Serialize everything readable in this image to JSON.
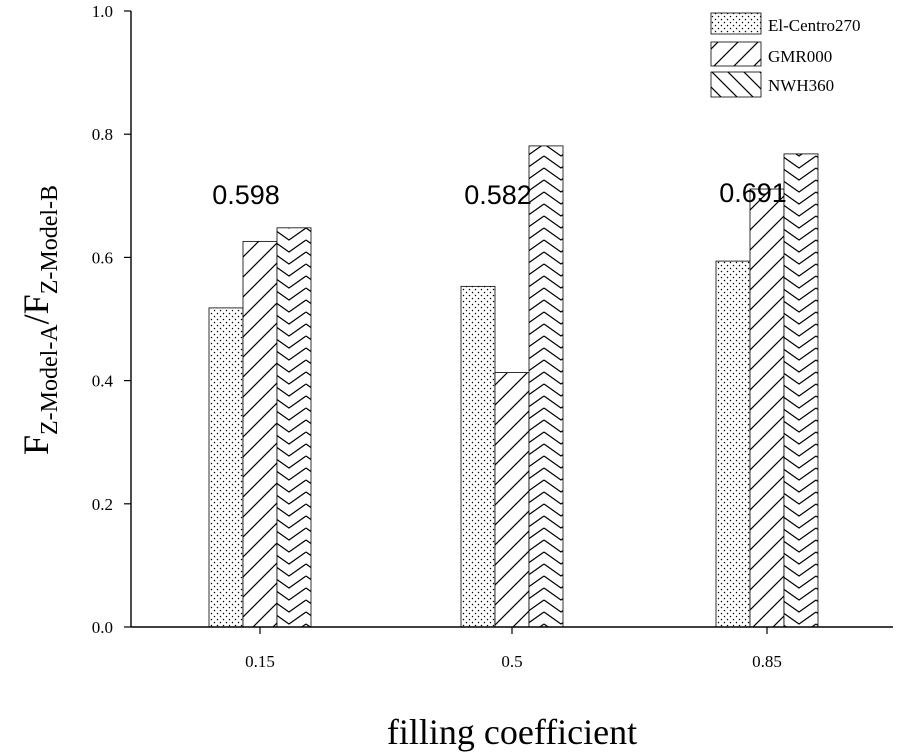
{
  "chart_data": {
    "type": "bar",
    "title": "",
    "xlabel": "filling coefficient",
    "ylabel": {
      "base_left": "F",
      "sub_left": "Z-Model-A",
      "slash": "/",
      "base_right": "F",
      "sub_right": "Z-Model-B"
    },
    "categories": [
      "0.15",
      "0.5",
      "0.85"
    ],
    "ylim": [
      0.0,
      1.0
    ],
    "yticks": [
      "0.0",
      "0.2",
      "0.4",
      "0.6",
      "0.8",
      "1.0"
    ],
    "grid": false,
    "legend_position": "top-right",
    "series": [
      {
        "name": "El-Centro270",
        "pattern": "dots",
        "values": [
          0.518,
          0.553,
          0.594
        ]
      },
      {
        "name": "GMR000",
        "pattern": "forward-diagonal",
        "values": [
          0.626,
          0.413,
          0.711
        ]
      },
      {
        "name": "NWH360",
        "pattern": "chevron",
        "values": [
          0.648,
          0.781,
          0.768
        ]
      }
    ],
    "annotations": [
      "0.598",
      "0.582",
      "0.691"
    ],
    "colors": {
      "stroke": "#000000",
      "fill": "#ffffff"
    }
  }
}
